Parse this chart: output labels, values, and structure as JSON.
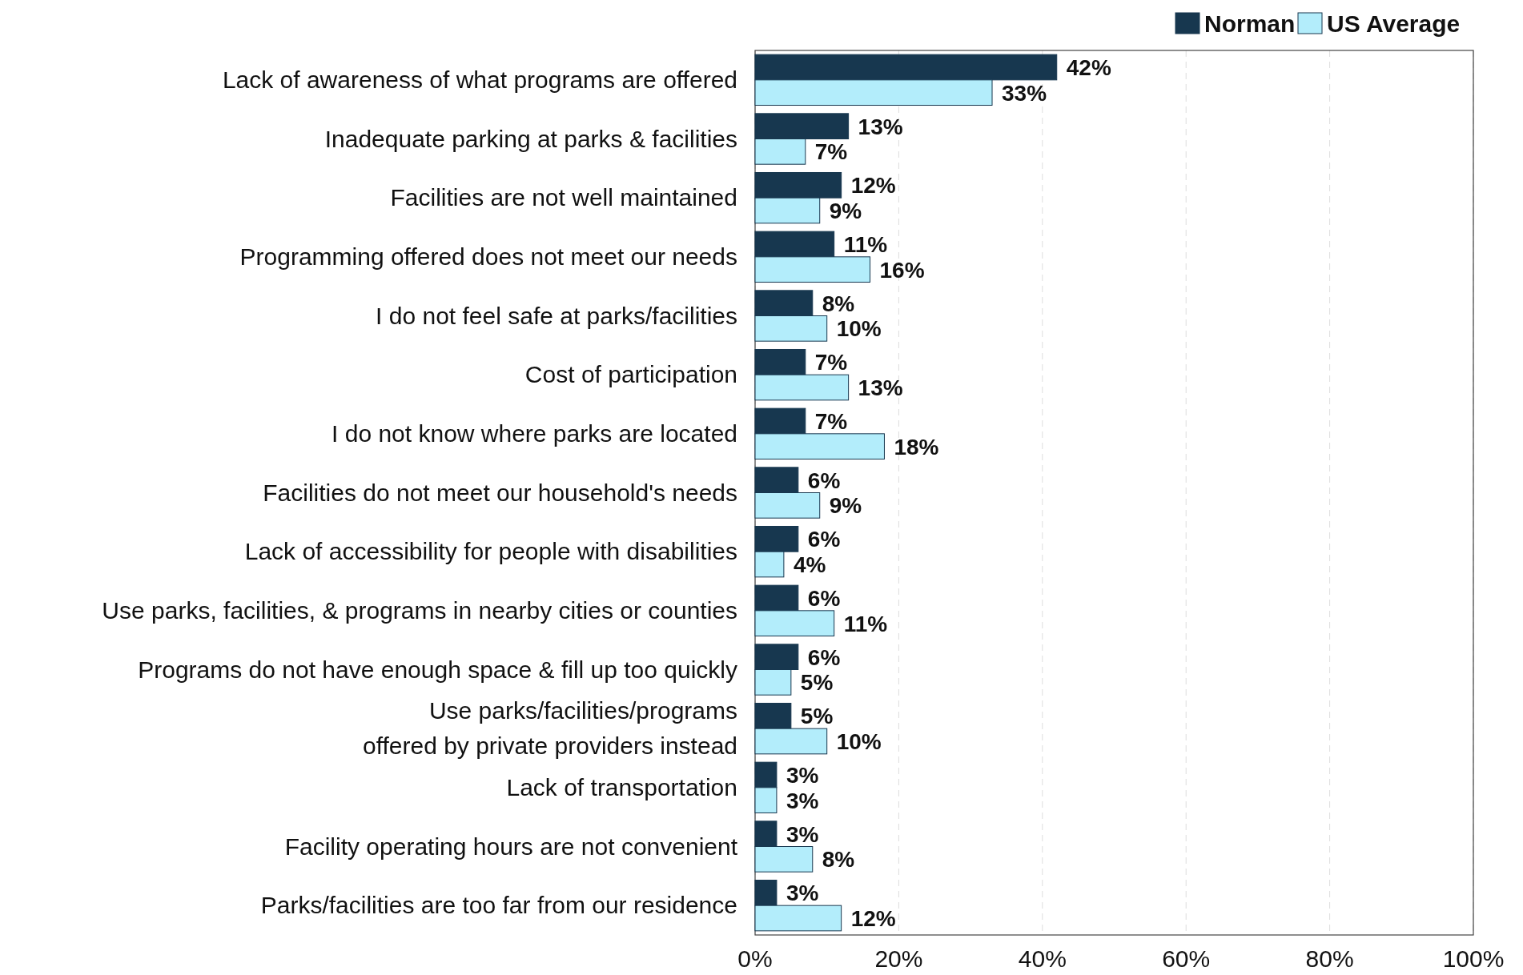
{
  "chart_data": {
    "type": "bar",
    "orientation": "horizontal",
    "categories": [
      "Lack of awareness of what programs are offered",
      "Inadequate parking at parks & facilities",
      "Facilities are not well maintained",
      "Programming offered does not meet our needs",
      "I do not feel safe at parks/facilities",
      "Cost of participation",
      "I do not know where parks are located",
      "Facilities do not meet our household's needs",
      "Lack of accessibility for people with disabilities",
      "Use parks, facilities, & programs in nearby cities or counties",
      "Programs do not have enough space & fill up too quickly",
      "Use parks/facilities/programs\noffered by private providers instead",
      "Lack of transportation",
      "Facility operating hours are not convenient",
      "Parks/facilities are too far from our residence"
    ],
    "series": [
      {
        "name": "Norman",
        "color": "#17374f",
        "values": [
          42,
          13,
          12,
          11,
          8,
          7,
          7,
          6,
          6,
          6,
          6,
          5,
          3,
          3,
          3
        ],
        "value_labels": [
          "42%",
          "13%",
          "12%",
          "11%",
          "8%",
          "7%",
          "7%",
          "6%",
          "6%",
          "6%",
          "6%",
          "5%",
          "3%",
          "3%",
          "3%"
        ]
      },
      {
        "name": "US Average",
        "color": "#b3edfb",
        "values": [
          33,
          7,
          9,
          16,
          10,
          13,
          18,
          9,
          4,
          11,
          5,
          10,
          3,
          8,
          12
        ],
        "value_labels": [
          "33%",
          "7%",
          "9%",
          "16%",
          "10%",
          "13%",
          "18%",
          "9%",
          "4%",
          "11%",
          "5%",
          "10%",
          "3%",
          "8%",
          "12%"
        ]
      }
    ],
    "xlim": [
      0,
      100
    ],
    "xticks": [
      {
        "value": 0,
        "label": "0%"
      },
      {
        "value": 20,
        "label": "20%"
      },
      {
        "value": 40,
        "label": "40%"
      },
      {
        "value": 60,
        "label": "60%"
      },
      {
        "value": 80,
        "label": "80%"
      },
      {
        "value": 100,
        "label": "100%"
      }
    ],
    "grid": "x",
    "legend": "top right"
  }
}
